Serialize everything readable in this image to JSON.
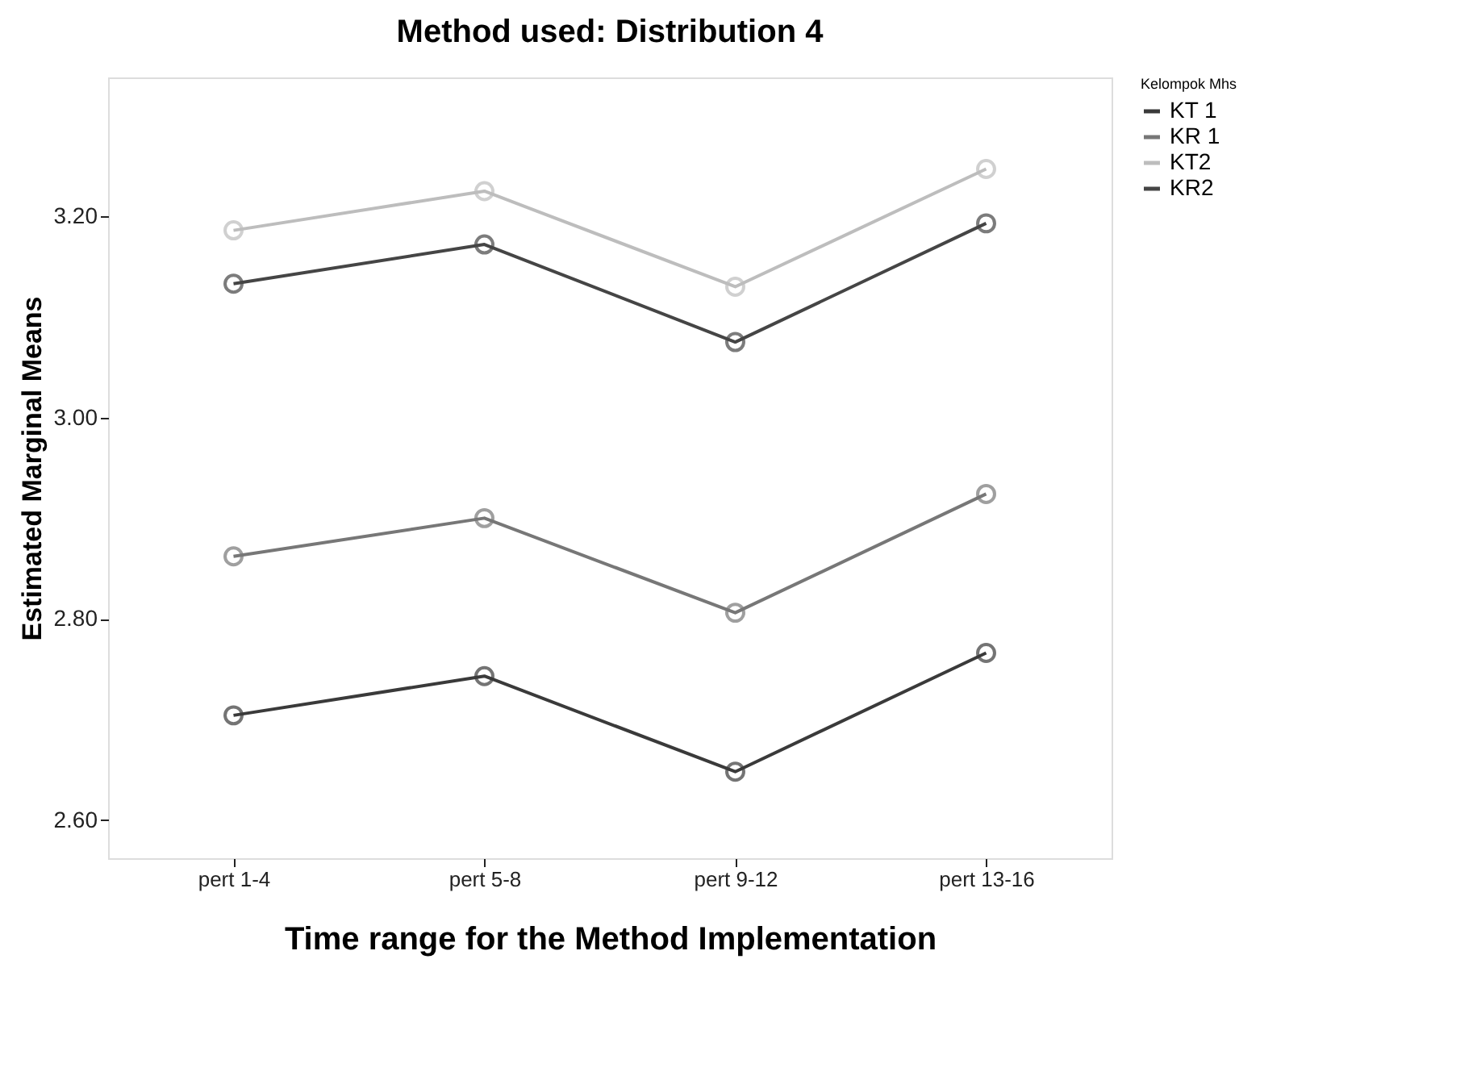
{
  "chart_data": {
    "type": "line",
    "title": "Method used: Distribution 4",
    "xlabel": "Time range for the Method Implementation",
    "ylabel": "Estimated Marginal Means",
    "legend_title": "Kelompok Mhs",
    "categories": [
      "pert 1-4",
      "pert 5-8",
      "pert 9-12",
      "pert 13-16"
    ],
    "series": [
      {
        "name": "KT 1",
        "color": "#3a3a3a",
        "values": [
          2.704,
          2.743,
          2.648,
          2.766
        ]
      },
      {
        "name": "KR 1",
        "color": "#777777",
        "values": [
          2.862,
          2.9,
          2.806,
          2.924
        ]
      },
      {
        "name": "KT2",
        "color": "#bdbdbd",
        "values": [
          3.186,
          3.225,
          3.13,
          3.247
        ]
      },
      {
        "name": "KR2",
        "color": "#454545",
        "values": [
          3.133,
          3.172,
          3.075,
          3.193
        ]
      }
    ],
    "ylim": [
      2.562,
      3.338
    ],
    "yticks": [
      {
        "value": 2.6,
        "label": "2.60"
      },
      {
        "value": 2.8,
        "label": "2.80"
      },
      {
        "value": 3.0,
        "label": "3.00"
      },
      {
        "value": 3.2,
        "label": "3.20"
      }
    ],
    "grid": false,
    "legend": "right",
    "marker": "circle",
    "line_style": "solid"
  }
}
